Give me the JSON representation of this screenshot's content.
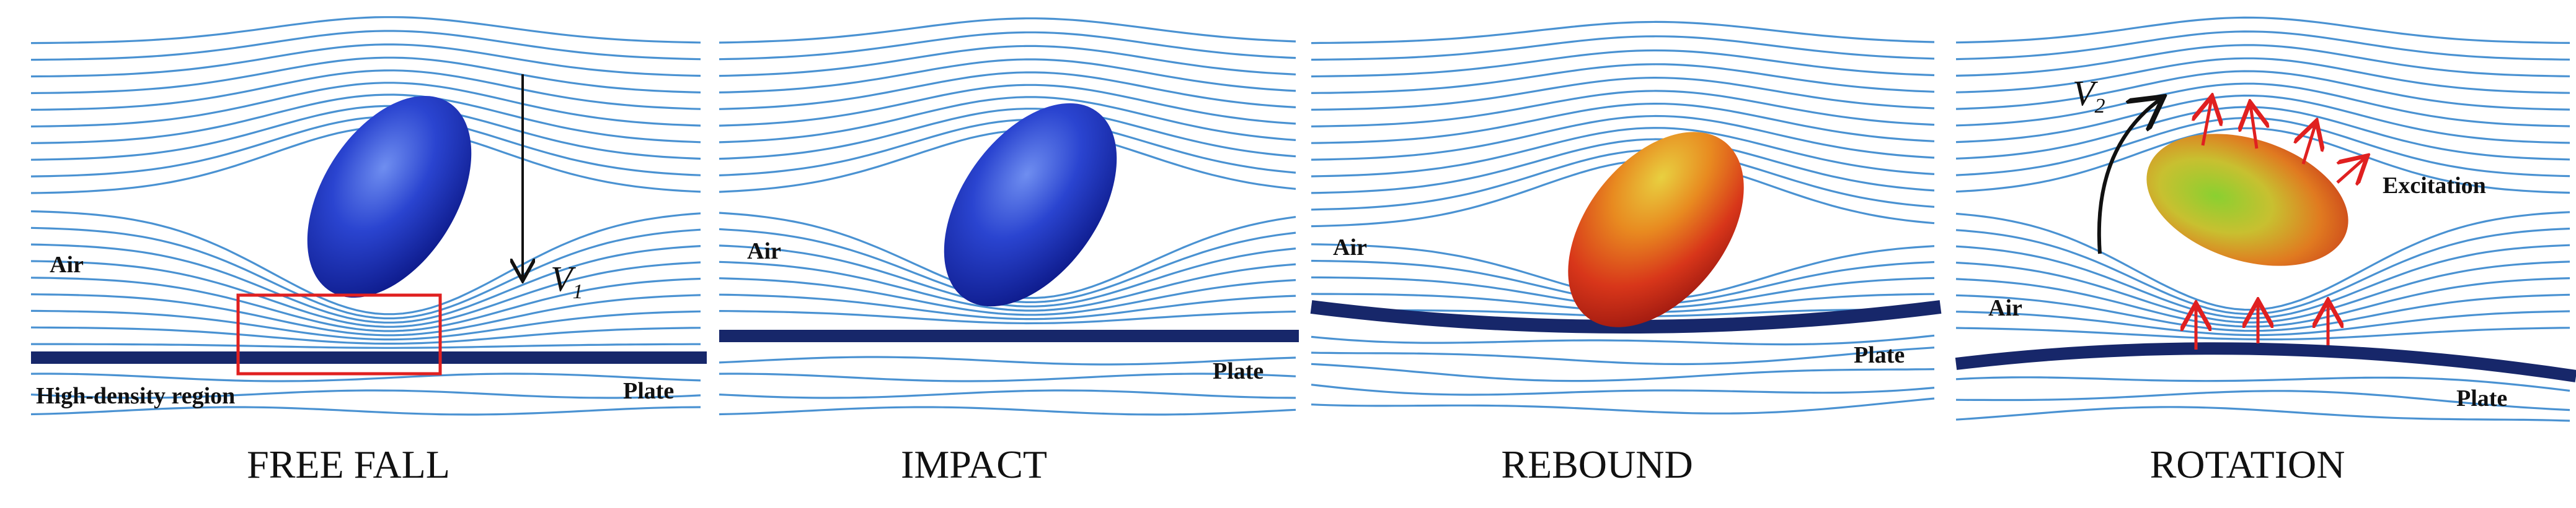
{
  "panels": [
    {
      "caption": "FREE FALL",
      "air": "Air",
      "velocity": "V",
      "velocity_subscript": "1",
      "region": "High-density region",
      "plate": "Plate"
    },
    {
      "caption": "IMPACT",
      "air": "Air",
      "plate": "Plate"
    },
    {
      "caption": "REBOUND",
      "air": "Air",
      "plate": "Plate"
    },
    {
      "caption": "ROTATION",
      "air": "Air",
      "velocity": "V",
      "velocity_subscript": "2",
      "excitation": "Excitation",
      "plate": "Plate"
    }
  ]
}
